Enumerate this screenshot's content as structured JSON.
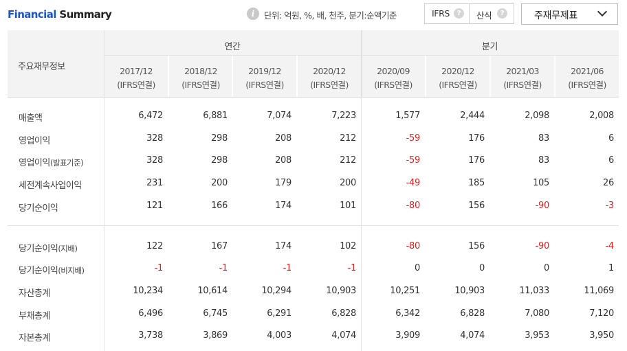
{
  "header": {
    "title_part1": "Financial",
    "title_part2": " Summary",
    "unit_text": "단위: 억원, %, 배, 천주, 분기:순액기준",
    "toggle_ifrs": "IFRS",
    "toggle_calc": "산식",
    "select_value": "주재무제표"
  },
  "table": {
    "corner_label": "주요재무정보",
    "group_annual": "연간",
    "group_quarterly": "분기",
    "periods": [
      {
        "date": "2017/12",
        "basis": "(IFRS연결)"
      },
      {
        "date": "2018/12",
        "basis": "(IFRS연결)"
      },
      {
        "date": "2019/12",
        "basis": "(IFRS연결)"
      },
      {
        "date": "2020/12",
        "basis": "(IFRS연결)"
      },
      {
        "date": "2020/09",
        "basis": "(IFRS연결)"
      },
      {
        "date": "2020/12",
        "basis": "(IFRS연결)"
      },
      {
        "date": "2021/03",
        "basis": "(IFRS연결)"
      },
      {
        "date": "2021/06",
        "basis": "(IFRS연결)"
      }
    ],
    "rows": [
      {
        "label": "매출액",
        "sub": "",
        "values": [
          "6,472",
          "6,881",
          "7,074",
          "7,223",
          "1,577",
          "2,444",
          "2,098",
          "2,008"
        ]
      },
      {
        "label": "영업이익",
        "sub": "",
        "values": [
          "328",
          "298",
          "208",
          "212",
          "-59",
          "176",
          "83",
          "6"
        ]
      },
      {
        "label": "영업이익",
        "sub": "(발표기준)",
        "values": [
          "328",
          "298",
          "208",
          "212",
          "-59",
          "176",
          "83",
          "6"
        ]
      },
      {
        "label": "세전계속사업이익",
        "sub": "",
        "values": [
          "231",
          "200",
          "179",
          "200",
          "-49",
          "185",
          "105",
          "26"
        ]
      },
      {
        "label": "당기순이익",
        "sub": "",
        "values": [
          "121",
          "166",
          "174",
          "101",
          "-80",
          "156",
          "-90",
          "-3"
        ]
      },
      {
        "label": "당기순이익",
        "sub": "(지배)",
        "values": [
          "122",
          "167",
          "174",
          "102",
          "-80",
          "156",
          "-90",
          "-4"
        ]
      },
      {
        "label": "당기순이익",
        "sub": "(비지배)",
        "values": [
          "-1",
          "-1",
          "-1",
          "-1",
          "0",
          "0",
          "0",
          "1"
        ]
      },
      {
        "label": "자산총계",
        "sub": "",
        "values": [
          "10,234",
          "10,614",
          "10,294",
          "10,903",
          "10,251",
          "10,903",
          "11,033",
          "11,069"
        ]
      },
      {
        "label": "부채총계",
        "sub": "",
        "values": [
          "6,496",
          "6,745",
          "6,291",
          "6,828",
          "6,342",
          "6,828",
          "7,080",
          "7,120"
        ]
      },
      {
        "label": "자본총계",
        "sub": "",
        "values": [
          "3,738",
          "3,869",
          "4,003",
          "4,074",
          "3,909",
          "4,074",
          "3,953",
          "3,950"
        ]
      }
    ]
  },
  "colors": {
    "brand_blue": "#1e56c4",
    "negative_red": "#e02020",
    "header_bg": "#f3f3f3"
  }
}
